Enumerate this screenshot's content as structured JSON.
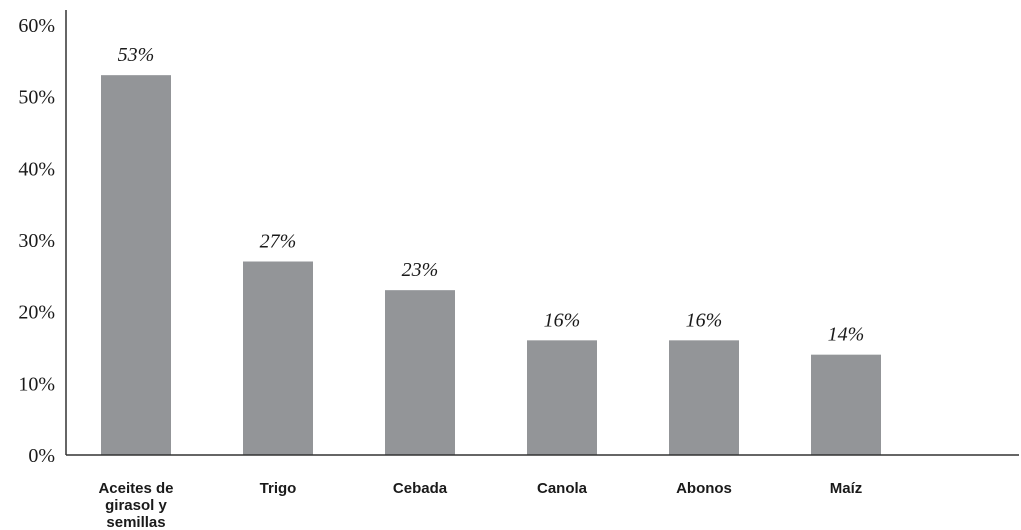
{
  "chart_data": {
    "type": "bar",
    "categories": [
      "Aceites de girasol y semillas",
      "Trigo",
      "Cebada",
      "Canola",
      "Abonos",
      "Maíz"
    ],
    "category_lines": [
      [
        "Aceites de",
        "girasol y",
        "semillas"
      ],
      [
        "Trigo"
      ],
      [
        "Cebada"
      ],
      [
        "Canola"
      ],
      [
        "Abonos"
      ],
      [
        "Maíz"
      ]
    ],
    "values": [
      53,
      27,
      23,
      16,
      16,
      14
    ],
    "data_labels": [
      "53%",
      "27%",
      "23%",
      "16%",
      "16%",
      "14%"
    ],
    "ylim": [
      0,
      60
    ],
    "yticks": [
      0,
      10,
      20,
      30,
      40,
      50,
      60
    ],
    "ytick_labels": [
      "0%",
      "10%",
      "20%",
      "30%",
      "40%",
      "50%",
      "60%"
    ],
    "title": "",
    "xlabel": "",
    "ylabel": "",
    "grid": false,
    "colors": {
      "bar": "#939598",
      "axis": "#333333",
      "text": "#1a1a1a"
    }
  }
}
